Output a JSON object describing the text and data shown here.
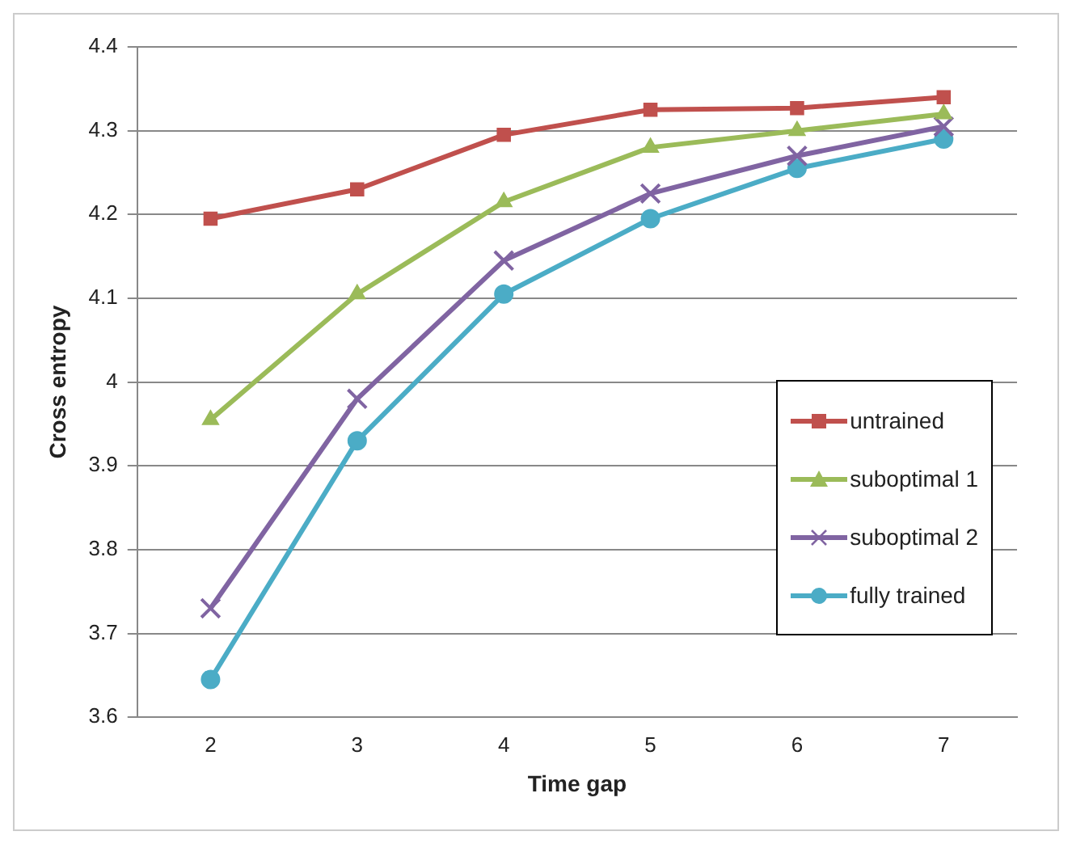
{
  "chart_data": {
    "type": "line",
    "xlabel": "Time gap",
    "ylabel": "Cross entropy",
    "categories": [
      "2",
      "3",
      "4",
      "5",
      "6",
      "7"
    ],
    "ylim": [
      3.6,
      4.4
    ],
    "yticks": [
      3.6,
      3.7,
      3.8,
      3.9,
      4,
      4.1,
      4.2,
      4.3,
      4.4
    ],
    "grid": "y",
    "legend": "bottom right",
    "series": [
      {
        "name": "untrained",
        "color": "#c0504d",
        "marker": "square",
        "values": [
          4.195,
          4.23,
          4.295,
          4.325,
          4.327,
          4.34
        ]
      },
      {
        "name": "suboptimal 1",
        "color": "#9bbb59",
        "marker": "triangle",
        "values": [
          3.955,
          4.105,
          4.215,
          4.28,
          4.3,
          4.32
        ]
      },
      {
        "name": "suboptimal 2",
        "color": "#8064a2",
        "marker": "cross",
        "values": [
          3.73,
          3.98,
          4.145,
          4.225,
          4.27,
          4.305
        ]
      },
      {
        "name": "fully trained",
        "color": "#4bacc6",
        "marker": "circle",
        "values": [
          3.645,
          3.93,
          4.105,
          4.195,
          4.255,
          4.29
        ]
      }
    ]
  }
}
